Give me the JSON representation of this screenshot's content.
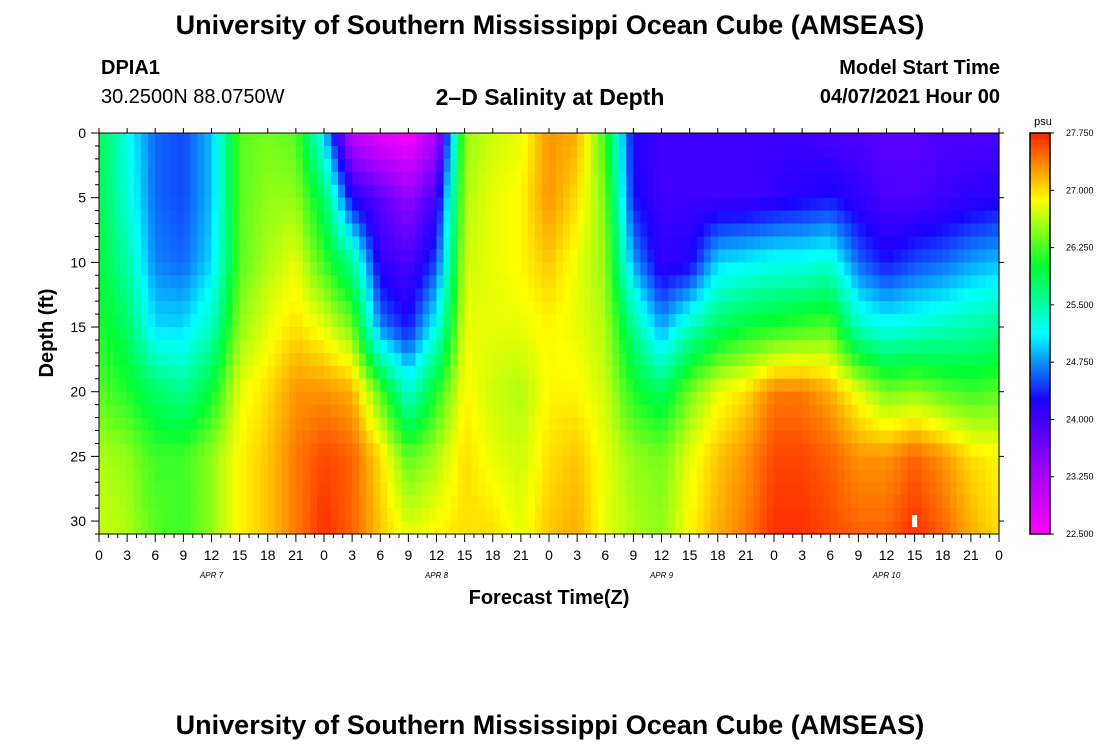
{
  "header": {
    "title": "University of Southern Mississippi Ocean Cube (AMSEAS)",
    "station_id": "DPIA1",
    "coordinates": "30.2500N  88.0750W",
    "subtitle": "2–D Salinity at Depth",
    "model_start_label": "Model Start Time",
    "model_start_value": "04/07/2021 Hour 00"
  },
  "footer": {
    "title": "University of Southern Mississippi Ocean Cube (AMSEAS)"
  },
  "colors": {
    "scale": [
      "#ff00ff",
      "#9900ff",
      "#1a00ff",
      "#00ffff",
      "#00ff33",
      "#ffff00",
      "#ff2200"
    ],
    "marker": "#ffffff"
  },
  "chart_data": {
    "type": "heatmap",
    "title": "2–D Salinity at Depth",
    "xlabel": "Forecast Time(Z)",
    "ylabel": "Depth (ft)",
    "x_range_hours": [
      0,
      96
    ],
    "y_range_ft": [
      0,
      31
    ],
    "x_ticks": [
      {
        "hour": 0,
        "label": "0"
      },
      {
        "hour": 3,
        "label": "3"
      },
      {
        "hour": 6,
        "label": "6"
      },
      {
        "hour": 9,
        "label": "9"
      },
      {
        "hour": 12,
        "label": "12"
      },
      {
        "hour": 15,
        "label": "15"
      },
      {
        "hour": 18,
        "label": "18"
      },
      {
        "hour": 21,
        "label": "21"
      },
      {
        "hour": 24,
        "label": "0"
      },
      {
        "hour": 27,
        "label": "3"
      },
      {
        "hour": 30,
        "label": "6"
      },
      {
        "hour": 33,
        "label": "9"
      },
      {
        "hour": 36,
        "label": "12"
      },
      {
        "hour": 39,
        "label": "15"
      },
      {
        "hour": 42,
        "label": "18"
      },
      {
        "hour": 45,
        "label": "21"
      },
      {
        "hour": 48,
        "label": "0"
      },
      {
        "hour": 51,
        "label": "3"
      },
      {
        "hour": 54,
        "label": "6"
      },
      {
        "hour": 57,
        "label": "9"
      },
      {
        "hour": 60,
        "label": "12"
      },
      {
        "hour": 63,
        "label": "15"
      },
      {
        "hour": 66,
        "label": "18"
      },
      {
        "hour": 69,
        "label": "21"
      },
      {
        "hour": 72,
        "label": "0"
      },
      {
        "hour": 75,
        "label": "3"
      },
      {
        "hour": 78,
        "label": "6"
      },
      {
        "hour": 81,
        "label": "9"
      },
      {
        "hour": 84,
        "label": "12"
      },
      {
        "hour": 87,
        "label": "15"
      },
      {
        "hour": 90,
        "label": "18"
      },
      {
        "hour": 93,
        "label": "21"
      },
      {
        "hour": 96,
        "label": "0"
      }
    ],
    "day_labels": [
      {
        "hour": 12,
        "label": "APR 7"
      },
      {
        "hour": 36,
        "label": "APR 8"
      },
      {
        "hour": 60,
        "label": "APR 9"
      },
      {
        "hour": 84,
        "label": "APR 10"
      }
    ],
    "y_ticks": [
      0,
      5,
      10,
      15,
      20,
      25,
      30
    ],
    "colorbar": {
      "unit": "psu",
      "min": 22.5,
      "max": 27.75,
      "tick_values": [
        22.5,
        23.25,
        24.0,
        24.75,
        25.5,
        26.25,
        27.0,
        27.75
      ],
      "tick_labels": [
        "22.500",
        "23.250",
        "24.000",
        "24.750",
        "25.500",
        "26.250",
        "27.000",
        "27.750"
      ]
    },
    "depth_levels_ft": [
      0,
      5,
      10,
      15,
      20,
      25,
      31
    ],
    "columns": [
      {
        "hour": 0,
        "salinity": [
          25.9,
          25.9,
          26.0,
          26.1,
          26.3,
          26.6,
          26.7
        ]
      },
      {
        "hour": 3,
        "salinity": [
          25.2,
          25.3,
          25.5,
          25.8,
          26.1,
          26.5,
          26.6
        ]
      },
      {
        "hour": 6,
        "salinity": [
          24.6,
          24.6,
          24.7,
          25.0,
          25.8,
          26.2,
          26.3
        ]
      },
      {
        "hour": 9,
        "salinity": [
          24.5,
          24.5,
          24.6,
          25.0,
          25.6,
          26.2,
          26.2
        ]
      },
      {
        "hour": 12,
        "salinity": [
          24.9,
          24.9,
          25.0,
          25.4,
          26.0,
          26.5,
          26.5
        ]
      },
      {
        "hour": 15,
        "salinity": [
          26.3,
          26.3,
          26.3,
          26.5,
          26.8,
          26.9,
          26.9
        ]
      },
      {
        "hour": 18,
        "salinity": [
          26.4,
          26.5,
          26.6,
          26.8,
          27.0,
          27.1,
          27.1
        ]
      },
      {
        "hour": 21,
        "salinity": [
          26.3,
          26.5,
          26.8,
          27.0,
          27.3,
          27.4,
          27.4
        ]
      },
      {
        "hour": 24,
        "salinity": [
          25.0,
          25.8,
          26.2,
          26.8,
          27.3,
          27.6,
          27.7
        ]
      },
      {
        "hour": 27,
        "salinity": [
          23.0,
          24.2,
          25.6,
          26.4,
          27.2,
          27.5,
          27.5
        ]
      },
      {
        "hour": 30,
        "salinity": [
          22.7,
          23.8,
          24.1,
          24.7,
          26.3,
          27.0,
          27.1
        ]
      },
      {
        "hour": 33,
        "salinity": [
          22.5,
          23.4,
          23.9,
          24.3,
          25.3,
          26.3,
          26.8
        ]
      },
      {
        "hour": 36,
        "salinity": [
          23.2,
          24.0,
          24.5,
          25.2,
          26.1,
          26.6,
          26.9
        ]
      },
      {
        "hour": 39,
        "salinity": [
          26.5,
          26.6,
          26.7,
          26.8,
          26.9,
          27.0,
          27.0
        ]
      },
      {
        "hour": 42,
        "salinity": [
          26.7,
          26.8,
          26.8,
          26.8,
          26.7,
          26.8,
          27.0
        ]
      },
      {
        "hour": 45,
        "salinity": [
          26.8,
          26.9,
          26.9,
          26.8,
          26.6,
          26.7,
          26.8
        ]
      },
      {
        "hour": 48,
        "salinity": [
          27.3,
          27.3,
          27.1,
          26.9,
          26.9,
          27.0,
          27.1
        ]
      },
      {
        "hour": 51,
        "salinity": [
          27.2,
          27.0,
          26.8,
          26.8,
          26.9,
          27.1,
          27.2
        ]
      },
      {
        "hour": 54,
        "salinity": [
          26.2,
          26.4,
          26.5,
          26.6,
          26.7,
          26.8,
          26.8
        ]
      },
      {
        "hour": 57,
        "salinity": [
          24.2,
          24.3,
          24.8,
          25.6,
          26.1,
          26.5,
          26.6
        ]
      },
      {
        "hour": 60,
        "salinity": [
          24.0,
          24.0,
          24.1,
          24.8,
          25.8,
          26.4,
          26.5
        ]
      },
      {
        "hour": 63,
        "salinity": [
          24.0,
          24.0,
          24.2,
          25.4,
          26.4,
          26.8,
          26.9
        ]
      },
      {
        "hour": 66,
        "salinity": [
          24.0,
          24.0,
          25.0,
          25.8,
          26.8,
          27.1,
          27.2
        ]
      },
      {
        "hour": 69,
        "salinity": [
          24.0,
          24.0,
          25.1,
          26.0,
          27.0,
          27.3,
          27.4
        ]
      },
      {
        "hour": 72,
        "salinity": [
          24.0,
          24.1,
          25.2,
          26.1,
          27.4,
          27.6,
          27.7
        ]
      },
      {
        "hour": 75,
        "salinity": [
          24.0,
          24.2,
          25.2,
          26.2,
          27.4,
          27.6,
          27.7
        ]
      },
      {
        "hour": 78,
        "salinity": [
          23.9,
          24.3,
          25.3,
          26.3,
          27.2,
          27.5,
          27.6
        ]
      },
      {
        "hour": 81,
        "salinity": [
          23.9,
          24.1,
          24.6,
          25.4,
          26.8,
          27.3,
          27.5
        ]
      },
      {
        "hour": 84,
        "salinity": [
          23.8,
          23.9,
          24.3,
          25.2,
          26.4,
          27.3,
          27.5
        ]
      },
      {
        "hour": 87,
        "salinity": [
          23.8,
          23.9,
          24.5,
          25.3,
          26.5,
          27.5,
          27.7
        ]
      },
      {
        "hour": 90,
        "salinity": [
          23.9,
          24.0,
          24.6,
          25.4,
          26.3,
          27.3,
          27.5
        ]
      },
      {
        "hour": 93,
        "salinity": [
          23.9,
          24.1,
          24.8,
          25.5,
          26.2,
          27.0,
          27.2
        ]
      },
      {
        "hour": 96,
        "salinity": [
          23.9,
          24.2,
          24.9,
          25.6,
          26.3,
          26.9,
          27.0
        ]
      }
    ],
    "marker": {
      "hour": 87,
      "depth_ft": 30
    }
  }
}
